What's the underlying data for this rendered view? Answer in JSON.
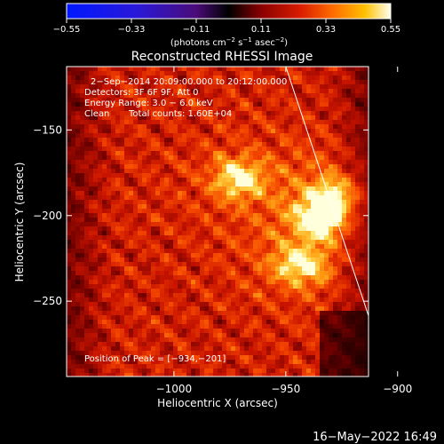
{
  "colorbar": {
    "ticks": [
      "−0.55",
      "−0.33",
      "−0.11",
      "0.11",
      "0.33",
      "0.55"
    ],
    "unit_base": "(photons cm",
    "unit_exp1": "−2",
    "unit_mid1": " s",
    "unit_exp2": "−1",
    "unit_mid2": " asec",
    "unit_exp3": "−2",
    "unit_end": ")",
    "range": [
      -0.55,
      0.55
    ]
  },
  "title": "Reconstructed RHESSI Image",
  "info": {
    "time_range": "2−Sep−2014 20:09:00.000 to 20:12:00.000",
    "detectors": "Detectors: 3F 6F 9F, Att 0",
    "energy": "Energy Range: 3.0 − 6.0 keV",
    "method": "Clean",
    "counts": "Total counts: 1.60E+04",
    "peak": "Position of Peak = [−934,−201]"
  },
  "footer_date": "16−May−2022 16:49",
  "chart_data": {
    "type": "heatmap",
    "title": "Reconstructed RHESSI Image",
    "xlabel": "Heliocentric X (arcsec)",
    "ylabel": "Heliocentric Y (arcsec)",
    "xlim": [
      -1048,
      -913
    ],
    "ylim": [
      -294,
      -113
    ],
    "x_ticks": [
      -1000,
      -950,
      -900
    ],
    "x_tick_labels": [
      "−1000",
      "−950",
      "−900"
    ],
    "y_ticks": [
      -150,
      -200,
      -250
    ],
    "y_tick_labels": [
      "−150",
      "−200",
      "−250"
    ],
    "colormap": "red-temperature",
    "sources": [
      {
        "x": -971,
        "y": -178,
        "peak": 0.5
      },
      {
        "x": -934,
        "y": -201,
        "peak": 0.55
      },
      {
        "x": -926,
        "y": -188,
        "peak": 0.45
      },
      {
        "x": -944,
        "y": -229,
        "peak": 0.45
      }
    ],
    "limb_line": [
      [
        -950,
        -113
      ],
      [
        -904,
        -294
      ]
    ]
  }
}
